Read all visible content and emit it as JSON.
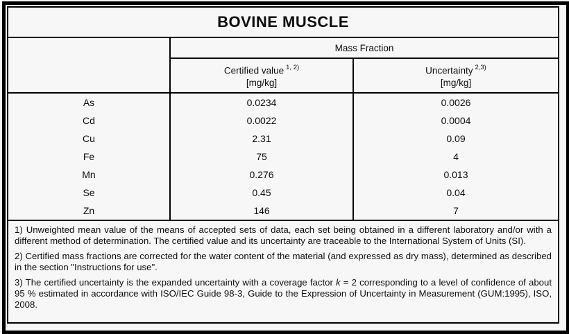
{
  "title": "BOVINE MUSCLE",
  "table": {
    "group_header": "Mass Fraction",
    "columns": {
      "certified": {
        "label": "Certified value",
        "superscript": "1, 2)",
        "unit": "[mg/kg]"
      },
      "uncertainty": {
        "label": "Uncertainty",
        "superscript": "2,3)",
        "unit": "[mg/kg]"
      }
    },
    "rows": [
      {
        "element": "As",
        "certified_value": "0.0234",
        "uncertainty": "0.0026"
      },
      {
        "element": "Cd",
        "certified_value": "0.0022",
        "uncertainty": "0.0004"
      },
      {
        "element": "Cu",
        "certified_value": "2.31",
        "uncertainty": "0.09"
      },
      {
        "element": "Fe",
        "certified_value": "75",
        "uncertainty": "4"
      },
      {
        "element": "Mn",
        "certified_value": "0.276",
        "uncertainty": "0.013"
      },
      {
        "element": "Se",
        "certified_value": "0.45",
        "uncertainty": "0.04"
      },
      {
        "element": "Zn",
        "certified_value": "146",
        "uncertainty": "7"
      }
    ]
  },
  "footnotes": {
    "note1": "1) Unweighted mean value of the means of accepted sets of data, each set being obtained in a different laboratory and/or with a different method of determination. The certified value and its uncertainty are traceable to the International System of Units (SI).",
    "note2": "2) Certified mass fractions are corrected for the water content of the material (and expressed as dry mass), determined as described in the section \"Instructions for use\".",
    "note3_before_k": "3) The certified uncertainty is the expanded uncertainty with a coverage factor ",
    "note3_k": "k",
    "note3_after_k": " = 2 corresponding to a level of confidence of about 95 % estimated in accordance with ISO/IEC Guide 98-3, Guide to the Expression of Uncertainty in Measurement (GUM:1995), ISO, 2008."
  },
  "colors": {
    "border": "#000000",
    "background": "#f7f7f7",
    "text": "#0d0d0d"
  }
}
